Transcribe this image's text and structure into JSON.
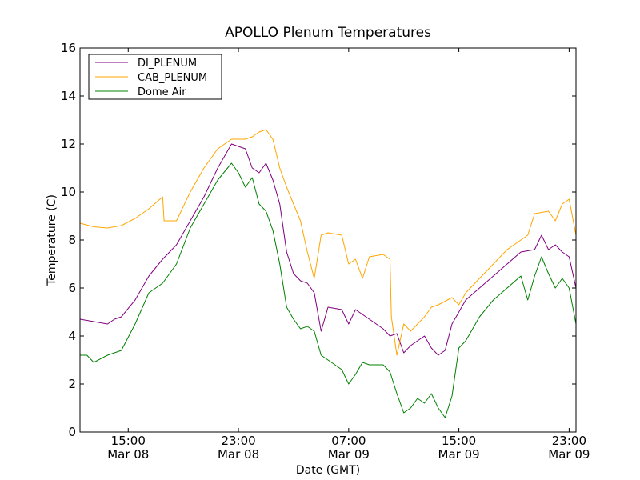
{
  "chart_data": {
    "type": "line",
    "title": "APOLLO Plenum Temperatures",
    "xlabel": "Date (GMT)",
    "ylabel": "Temperature (C)",
    "xlim_hours": [
      0,
      36
    ],
    "ylim": [
      0,
      16
    ],
    "yticks": [
      0,
      2,
      4,
      6,
      8,
      10,
      12,
      14,
      16
    ],
    "xticks": [
      {
        "hour": 3.5,
        "time": "15:00",
        "date": "Mar 08"
      },
      {
        "hour": 11.5,
        "time": "23:00",
        "date": "Mar 08"
      },
      {
        "hour": 19.5,
        "time": "07:00",
        "date": "Mar 09"
      },
      {
        "hour": 27.5,
        "time": "15:00",
        "date": "Mar 09"
      },
      {
        "hour": 35.5,
        "time": "23:00",
        "date": "Mar 09"
      }
    ],
    "legend_position": "top-left",
    "series": [
      {
        "name": "DI_PLENUM",
        "color": "#800080",
        "points": [
          [
            0,
            4.7
          ],
          [
            1,
            4.6
          ],
          [
            2,
            4.5
          ],
          [
            2.5,
            4.7
          ],
          [
            3,
            4.8
          ],
          [
            4,
            5.5
          ],
          [
            5,
            6.5
          ],
          [
            6,
            7.2
          ],
          [
            7,
            7.8
          ],
          [
            8,
            8.8
          ],
          [
            9,
            9.8
          ],
          [
            10,
            11.0
          ],
          [
            11,
            12.0
          ],
          [
            12,
            11.8
          ],
          [
            12.5,
            11.0
          ],
          [
            13,
            10.8
          ],
          [
            13.5,
            11.2
          ],
          [
            14,
            10.5
          ],
          [
            14.5,
            9.5
          ],
          [
            15,
            7.5
          ],
          [
            15.5,
            6.6
          ],
          [
            16,
            6.3
          ],
          [
            16.5,
            6.2
          ],
          [
            17,
            5.8
          ],
          [
            17.5,
            4.2
          ],
          [
            18,
            5.2
          ],
          [
            19,
            5.1
          ],
          [
            19.5,
            4.5
          ],
          [
            20,
            5.1
          ],
          [
            21,
            4.7
          ],
          [
            22,
            4.3
          ],
          [
            22.5,
            4.0
          ],
          [
            23,
            4.1
          ],
          [
            23.5,
            3.3
          ],
          [
            24,
            3.6
          ],
          [
            24.5,
            3.8
          ],
          [
            25,
            4.0
          ],
          [
            25.5,
            3.5
          ],
          [
            26,
            3.2
          ],
          [
            26.5,
            3.4
          ],
          [
            27,
            4.5
          ],
          [
            27.5,
            5.0
          ],
          [
            28,
            5.5
          ],
          [
            29,
            6.0
          ],
          [
            30,
            6.5
          ],
          [
            31,
            7.0
          ],
          [
            32,
            7.5
          ],
          [
            33,
            7.6
          ],
          [
            33.5,
            8.2
          ],
          [
            34,
            7.6
          ],
          [
            34.5,
            7.8
          ],
          [
            35,
            7.5
          ],
          [
            35.5,
            7.3
          ],
          [
            36,
            6.0
          ]
        ]
      },
      {
        "name": "CAB_PLENUM",
        "color": "#ffa500",
        "points": [
          [
            0,
            8.7
          ],
          [
            1,
            8.55
          ],
          [
            2,
            8.5
          ],
          [
            3,
            8.6
          ],
          [
            4,
            8.9
          ],
          [
            5,
            9.3
          ],
          [
            6,
            9.8
          ],
          [
            6.1,
            8.8
          ],
          [
            7,
            8.8
          ],
          [
            8,
            10.0
          ],
          [
            9,
            11.0
          ],
          [
            10,
            11.8
          ],
          [
            11,
            12.2
          ],
          [
            12,
            12.2
          ],
          [
            12.5,
            12.3
          ],
          [
            13,
            12.5
          ],
          [
            13.5,
            12.6
          ],
          [
            14,
            12.2
          ],
          [
            14.5,
            11.0
          ],
          [
            15,
            10.2
          ],
          [
            15.5,
            9.5
          ],
          [
            16,
            8.8
          ],
          [
            16.5,
            7.5
          ],
          [
            17,
            6.4
          ],
          [
            17.5,
            8.2
          ],
          [
            18,
            8.3
          ],
          [
            19,
            8.2
          ],
          [
            19.5,
            7.0
          ],
          [
            20,
            7.2
          ],
          [
            20.5,
            6.4
          ],
          [
            21,
            7.3
          ],
          [
            22,
            7.4
          ],
          [
            22.5,
            7.2
          ],
          [
            22.6,
            4.8
          ],
          [
            23,
            3.2
          ],
          [
            23.5,
            4.5
          ],
          [
            24,
            4.2
          ],
          [
            24.5,
            4.5
          ],
          [
            25,
            4.8
          ],
          [
            25.5,
            5.2
          ],
          [
            26,
            5.3
          ],
          [
            27,
            5.6
          ],
          [
            27.5,
            5.3
          ],
          [
            28,
            5.8
          ],
          [
            29,
            6.4
          ],
          [
            30,
            7.0
          ],
          [
            31,
            7.6
          ],
          [
            32,
            8.0
          ],
          [
            32.5,
            8.2
          ],
          [
            33,
            9.1
          ],
          [
            34,
            9.2
          ],
          [
            34.5,
            8.8
          ],
          [
            35,
            9.5
          ],
          [
            35.5,
            9.7
          ],
          [
            36,
            8.2
          ]
        ]
      },
      {
        "name": "Dome Air",
        "color": "#008000",
        "points": [
          [
            0,
            3.2
          ],
          [
            0.5,
            3.2
          ],
          [
            1,
            2.9
          ],
          [
            2,
            3.2
          ],
          [
            3,
            3.4
          ],
          [
            4,
            4.5
          ],
          [
            5,
            5.8
          ],
          [
            6,
            6.2
          ],
          [
            7,
            7.0
          ],
          [
            8,
            8.5
          ],
          [
            9,
            9.5
          ],
          [
            10,
            10.5
          ],
          [
            11,
            11.2
          ],
          [
            11.5,
            10.8
          ],
          [
            12,
            10.2
          ],
          [
            12.5,
            10.6
          ],
          [
            13,
            9.5
          ],
          [
            13.5,
            9.2
          ],
          [
            14,
            8.4
          ],
          [
            14.5,
            7.0
          ],
          [
            15,
            5.2
          ],
          [
            15.5,
            4.7
          ],
          [
            16,
            4.3
          ],
          [
            16.5,
            4.4
          ],
          [
            17,
            4.2
          ],
          [
            17.5,
            3.2
          ],
          [
            18,
            3.0
          ],
          [
            19,
            2.6
          ],
          [
            19.5,
            2.0
          ],
          [
            20,
            2.4
          ],
          [
            20.5,
            2.9
          ],
          [
            21,
            2.8
          ],
          [
            22,
            2.8
          ],
          [
            22.5,
            2.5
          ],
          [
            23,
            1.6
          ],
          [
            23.5,
            0.8
          ],
          [
            24,
            1.0
          ],
          [
            24.5,
            1.4
          ],
          [
            25,
            1.2
          ],
          [
            25.5,
            1.6
          ],
          [
            26,
            1.0
          ],
          [
            26.5,
            0.6
          ],
          [
            27,
            1.5
          ],
          [
            27.5,
            3.5
          ],
          [
            28,
            3.8
          ],
          [
            29,
            4.8
          ],
          [
            30,
            5.5
          ],
          [
            31,
            6.0
          ],
          [
            32,
            6.5
          ],
          [
            32.5,
            5.5
          ],
          [
            33,
            6.5
          ],
          [
            33.5,
            7.3
          ],
          [
            34,
            6.6
          ],
          [
            34.5,
            6.0
          ],
          [
            35,
            6.4
          ],
          [
            35.5,
            6.0
          ],
          [
            36,
            4.5
          ]
        ]
      }
    ]
  }
}
